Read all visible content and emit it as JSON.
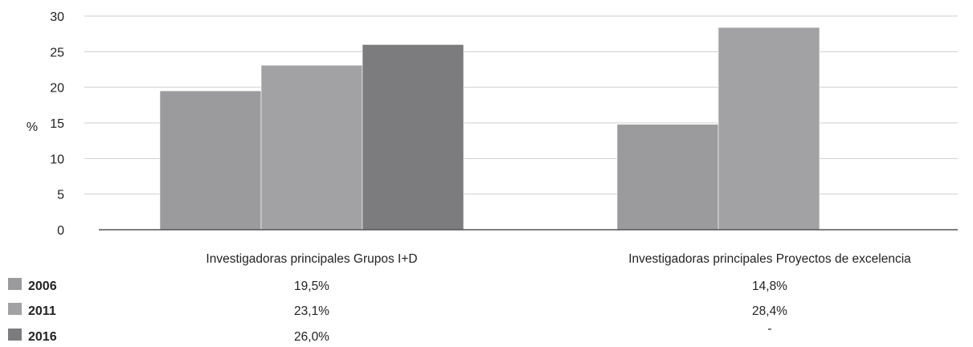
{
  "chart_data": {
    "type": "bar",
    "title": "",
    "xlabel": "",
    "ylabel": "%",
    "ylim": [
      0,
      30
    ],
    "yticks": [
      0,
      5,
      10,
      15,
      20,
      25,
      30
    ],
    "grid": true,
    "categories": [
      "Investigadoras principales Grupos I+D",
      "Investigadoras principales Proyectos de excelencia"
    ],
    "series": [
      {
        "name": "2006",
        "color": "#9b9b9d",
        "values": [
          19.5,
          14.8
        ],
        "labels": [
          "19,5%",
          "14,8%"
        ]
      },
      {
        "name": "2011",
        "color": "#a2a2a4",
        "values": [
          23.1,
          28.4
        ],
        "labels": [
          "23,1%",
          "28,4%"
        ]
      },
      {
        "name": "2016",
        "color": "#7c7c7f",
        "values": [
          26.0,
          null
        ],
        "labels": [
          "26,0%",
          "-"
        ]
      }
    ]
  }
}
